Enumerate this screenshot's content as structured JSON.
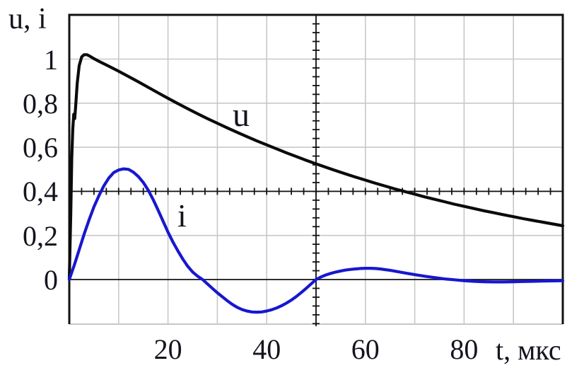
{
  "figure": {
    "axis_title": "u, i",
    "x_axis_title": "t, мкс",
    "curve_label_u": "u",
    "curve_label_i": "i"
  },
  "colors": {
    "background": "#ffffff",
    "grid": "#c6c9c5",
    "frame": "#121212",
    "axis": "#121212",
    "u_curve": "#0b0b0b",
    "i_curve": "#1717cf",
    "text": "#14141e"
  },
  "chart_data": {
    "type": "line",
    "title": "",
    "xlabel": "t, мкс",
    "ylabel": "u, i",
    "xlim": [
      0,
      100
    ],
    "ylim": [
      -0.2,
      1.2
    ],
    "grid": "on",
    "x_gridline_step": 10,
    "y_gridline_step": 0.2,
    "axes_cross_at": {
      "x": 50,
      "y": 0.4
    },
    "x_minor_tick_step": 2.5,
    "y_minor_tick_step": 0.04,
    "x_ticks": [
      {
        "value": 20,
        "label": "20"
      },
      {
        "value": 40,
        "label": "40"
      },
      {
        "value": 60,
        "label": "60"
      },
      {
        "value": 80,
        "label": "80"
      }
    ],
    "y_ticks": [
      {
        "value": 1.0,
        "label": "1"
      },
      {
        "value": 0.8,
        "label": "0,8"
      },
      {
        "value": 0.6,
        "label": "0,6"
      },
      {
        "value": 0.4,
        "label": "0,4"
      },
      {
        "value": 0.2,
        "label": "0,2"
      },
      {
        "value": 0.0,
        "label": "0"
      }
    ],
    "series": [
      {
        "name": "u",
        "color": "#0b0b0b",
        "peak": {
          "t": 3,
          "value": 1.02
        },
        "points": [
          [
            0,
            0
          ],
          [
            0.3,
            0.3
          ],
          [
            0.5,
            0.55
          ],
          [
            0.7,
            0.68
          ],
          [
            0.9,
            0.75
          ],
          [
            1.1,
            0.73
          ],
          [
            1.3,
            0.79
          ],
          [
            1.6,
            0.89
          ],
          [
            2.0,
            0.97
          ],
          [
            2.5,
            1.01
          ],
          [
            3,
            1.02
          ],
          [
            3.6,
            1.02
          ],
          [
            4.2,
            1.013
          ],
          [
            5,
            1.002
          ],
          [
            6,
            0.99
          ],
          [
            8,
            0.968
          ],
          [
            10,
            0.945
          ],
          [
            12,
            0.921
          ],
          [
            14,
            0.897
          ],
          [
            16,
            0.872
          ],
          [
            18,
            0.847
          ],
          [
            20,
            0.822
          ],
          [
            22,
            0.798
          ],
          [
            24,
            0.775
          ],
          [
            26,
            0.752
          ],
          [
            28,
            0.73
          ],
          [
            30,
            0.709
          ],
          [
            32,
            0.688
          ],
          [
            34,
            0.668
          ],
          [
            36,
            0.648
          ],
          [
            38,
            0.629
          ],
          [
            40,
            0.611
          ],
          [
            42,
            0.593
          ],
          [
            44,
            0.575
          ],
          [
            46,
            0.558
          ],
          [
            48,
            0.541
          ],
          [
            50,
            0.525
          ],
          [
            52,
            0.509
          ],
          [
            54,
            0.494
          ],
          [
            56,
            0.479
          ],
          [
            58,
            0.465
          ],
          [
            60,
            0.451
          ],
          [
            62,
            0.437
          ],
          [
            64,
            0.424
          ],
          [
            66,
            0.411
          ],
          [
            68,
            0.399
          ],
          [
            70,
            0.387
          ],
          [
            72,
            0.375
          ],
          [
            74,
            0.364
          ],
          [
            76,
            0.353
          ],
          [
            78,
            0.342
          ],
          [
            80,
            0.332
          ],
          [
            82,
            0.322
          ],
          [
            84,
            0.312
          ],
          [
            86,
            0.303
          ],
          [
            88,
            0.294
          ],
          [
            90,
            0.285
          ],
          [
            92,
            0.276
          ],
          [
            94,
            0.268
          ],
          [
            96,
            0.26
          ],
          [
            98,
            0.252
          ],
          [
            100,
            0.244
          ]
        ]
      },
      {
        "name": "i",
        "color": "#1717cf",
        "peak": {
          "t": 11,
          "value": 0.5
        },
        "minimum": {
          "t": 37,
          "value": -0.148
        },
        "zero_crossings": [
          27,
          50,
          77
        ],
        "points": [
          [
            0,
            0
          ],
          [
            1,
            0.065
          ],
          [
            2,
            0.135
          ],
          [
            3,
            0.205
          ],
          [
            4,
            0.27
          ],
          [
            5,
            0.33
          ],
          [
            6,
            0.38
          ],
          [
            7,
            0.425
          ],
          [
            8,
            0.46
          ],
          [
            9,
            0.485
          ],
          [
            10,
            0.497
          ],
          [
            11,
            0.502
          ],
          [
            12,
            0.5
          ],
          [
            13,
            0.487
          ],
          [
            14,
            0.467
          ],
          [
            15,
            0.44
          ],
          [
            16,
            0.405
          ],
          [
            17,
            0.362
          ],
          [
            18,
            0.315
          ],
          [
            19,
            0.265
          ],
          [
            20,
            0.215
          ],
          [
            21,
            0.17
          ],
          [
            22,
            0.13
          ],
          [
            23,
            0.093
          ],
          [
            24,
            0.06
          ],
          [
            25,
            0.034
          ],
          [
            26,
            0.015
          ],
          [
            27,
            0
          ],
          [
            28,
            -0.02
          ],
          [
            29,
            -0.04
          ],
          [
            30,
            -0.06
          ],
          [
            31,
            -0.078
          ],
          [
            32,
            -0.096
          ],
          [
            33,
            -0.112
          ],
          [
            34,
            -0.126
          ],
          [
            35,
            -0.136
          ],
          [
            36,
            -0.143
          ],
          [
            37,
            -0.147
          ],
          [
            38,
            -0.148
          ],
          [
            39,
            -0.147
          ],
          [
            40,
            -0.143
          ],
          [
            41,
            -0.137
          ],
          [
            42,
            -0.129
          ],
          [
            43,
            -0.119
          ],
          [
            44,
            -0.107
          ],
          [
            45,
            -0.093
          ],
          [
            46,
            -0.077
          ],
          [
            47,
            -0.059
          ],
          [
            48,
            -0.04
          ],
          [
            49,
            -0.02
          ],
          [
            50,
            0
          ],
          [
            51,
            0.012
          ],
          [
            52,
            0.021
          ],
          [
            53,
            0.028
          ],
          [
            54,
            0.034
          ],
          [
            55,
            0.039
          ],
          [
            56,
            0.043
          ],
          [
            57,
            0.046
          ],
          [
            58,
            0.048
          ],
          [
            59,
            0.05
          ],
          [
            60,
            0.051
          ],
          [
            61,
            0.051
          ],
          [
            62,
            0.05
          ],
          [
            63,
            0.048
          ],
          [
            64,
            0.045
          ],
          [
            65,
            0.042
          ],
          [
            66,
            0.038
          ],
          [
            67,
            0.034
          ],
          [
            68,
            0.03
          ],
          [
            70,
            0.022
          ],
          [
            72,
            0.015
          ],
          [
            74,
            0.009
          ],
          [
            76,
            0.003
          ],
          [
            78,
            -0.001
          ],
          [
            80,
            -0.005
          ],
          [
            82,
            -0.008
          ],
          [
            84,
            -0.01
          ],
          [
            86,
            -0.011
          ],
          [
            88,
            -0.011
          ],
          [
            90,
            -0.01
          ],
          [
            92,
            -0.009
          ],
          [
            94,
            -0.008
          ],
          [
            96,
            -0.007
          ],
          [
            98,
            -0.006
          ],
          [
            100,
            -0.005
          ]
        ]
      }
    ]
  }
}
